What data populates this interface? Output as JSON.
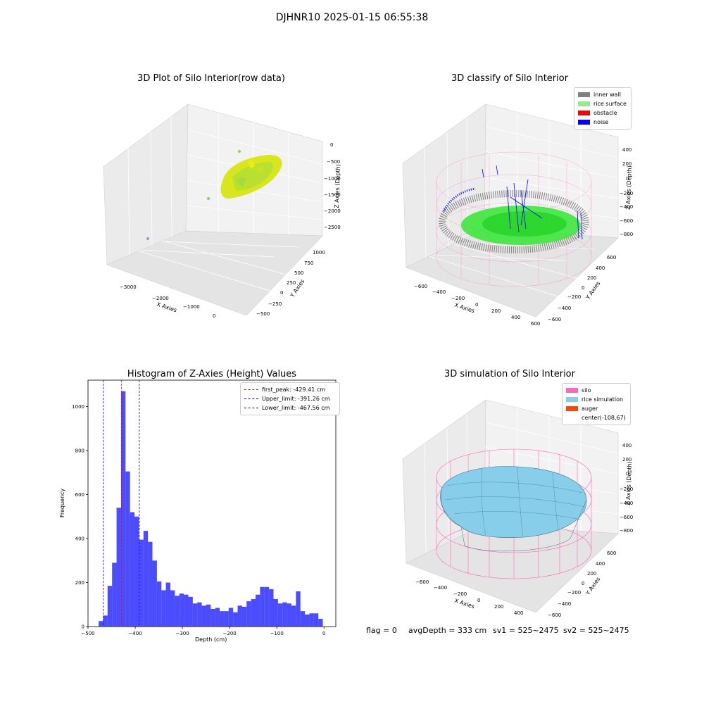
{
  "suptitle": "DJHNR10 2025-01-15 06:55:38",
  "panels": {
    "raw": {
      "title": "3D Plot of Silo Interior(row data)",
      "xlabel": "X Axies",
      "ylabel": "Y Axies",
      "zlabel": "Z Axies (Depth)",
      "xticks": [
        "−3000",
        "−2000",
        "−1000",
        "0"
      ],
      "yticks": [
        "−500",
        "−250",
        "0",
        "250",
        "500",
        "750",
        "1000"
      ],
      "zticks": [
        "0",
        "−500",
        "−1000",
        "−1500",
        "−2000",
        "−2500"
      ]
    },
    "classify": {
      "title": "3D classify of Silo Interior",
      "xlabel": "X Axies",
      "ylabel": "Y Axies",
      "zlabel": "Z Axies (Depth)",
      "xticks": [
        "−600",
        "−400",
        "−200",
        "0",
        "200",
        "400",
        "600"
      ],
      "yticks": [
        "−600",
        "−400",
        "−200",
        "0",
        "200",
        "400",
        "600"
      ],
      "zticks": [
        "400",
        "200",
        "0",
        "−200",
        "−400",
        "−600",
        "−800"
      ],
      "legend": [
        {
          "label": "inner wall",
          "color": "#808080"
        },
        {
          "label": "rice surface",
          "color": "#90ee90"
        },
        {
          "label": "obstacle",
          "color": "#ff0000"
        },
        {
          "label": "noise",
          "color": "#0000ff"
        }
      ]
    },
    "simulation": {
      "title": "3D simulation of Silo Interior",
      "xlabel": "X Axies",
      "ylabel": "Y Axies",
      "zlabel": "Z Axies (Depth)",
      "xticks": [
        "−600",
        "−400",
        "−200",
        "0",
        "200",
        "400"
      ],
      "yticks": [
        "−600",
        "−400",
        "−200",
        "0",
        "200",
        "400",
        "600"
      ],
      "zticks": [
        "400",
        "200",
        "0",
        "−200",
        "−400",
        "−600",
        "−800"
      ],
      "legend": [
        {
          "label": "silo",
          "color": "#ff69b4"
        },
        {
          "label": "rice simulation",
          "color": "#87ceeb"
        },
        {
          "label": "auger",
          "color": "#ff4500"
        },
        {
          "label": "center(-108,67)",
          "color": "none"
        }
      ]
    }
  },
  "chart_data": {
    "type": "bar",
    "title": "Histogram of Z-Axies (Height) Values",
    "xlabel": "Depth (cm)",
    "ylabel": "Frequency",
    "xlim": [
      -500,
      25
    ],
    "ylim": [
      0,
      1120
    ],
    "xticks": [
      -500,
      -400,
      -300,
      -200,
      -100,
      0
    ],
    "yticks": [
      0,
      200,
      400,
      600,
      800,
      1000
    ],
    "bar_color": "#0000ff",
    "bin_start": -477.5,
    "bin_width": 9.5,
    "values": [
      25,
      50,
      185,
      290,
      540,
      1070,
      705,
      520,
      500,
      395,
      435,
      385,
      300,
      205,
      165,
      200,
      165,
      140,
      150,
      145,
      135,
      105,
      110,
      95,
      100,
      80,
      85,
      70,
      70,
      85,
      65,
      95,
      90,
      115,
      125,
      145,
      180,
      180,
      170,
      125,
      105,
      110,
      105,
      95,
      160,
      70,
      55,
      60,
      60,
      35
    ],
    "vlines": [
      {
        "x": -429.41,
        "color": "#ff0000",
        "label": "first_peak: -429.41 cm"
      },
      {
        "x": -391.26,
        "color": "#0000ff",
        "label": "Upper_limit: -391.26 cm"
      },
      {
        "x": -467.56,
        "color": "#0000ff",
        "label": "Lower_limit: -467.56 cm"
      }
    ],
    "legend_position": "upper right"
  },
  "footer": {
    "flag": "flag = 0",
    "avg_depth": "avgDepth = 333 cm",
    "sv1": "sv1 = 525~2475",
    "sv2": "sv2 = 525~2475"
  }
}
